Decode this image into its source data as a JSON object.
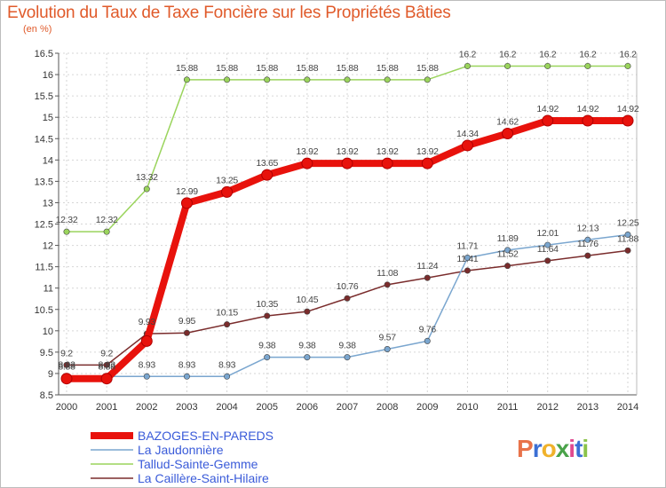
{
  "title": "Evolution du Taux de Taxe Foncière sur les Propriétés Bâties",
  "unit_label": "(en %)",
  "logo": {
    "text": "Proxiti",
    "colors": [
      "#e8734a",
      "#3b6fd4",
      "#f0b22b",
      "#4aa34a",
      "#e04a8f",
      "#3b6fd4",
      "#8bc34a"
    ]
  },
  "chart_data": {
    "type": "line",
    "x": [
      "2000",
      "2001",
      "2002",
      "2003",
      "2004",
      "2005",
      "2006",
      "2007",
      "2008",
      "2009",
      "2010",
      "2011",
      "2012",
      "2013",
      "2014"
    ],
    "ylim": [
      8.5,
      16.5
    ],
    "yticks": [
      "8.5",
      "9",
      "9.5",
      "10",
      "10.5",
      "11",
      "11.5",
      "12",
      "12.5",
      "13",
      "13.5",
      "14",
      "14.5",
      "15",
      "15.5",
      "16",
      "16.5"
    ],
    "grid": true,
    "legend_position": "bottom-left",
    "series": [
      {
        "name": "BAZOGES-EN-PAREDS",
        "color": "#e8120c",
        "values": [
          8.88,
          8.88,
          9.76,
          12.99,
          13.25,
          13.65,
          13.92,
          13.92,
          13.92,
          13.92,
          14.34,
          14.62,
          14.92,
          14.92,
          14.92
        ],
        "labels": [
          "8.88",
          "8.88",
          "",
          "12.99",
          "13.25",
          "13.65",
          "13.92",
          "13.92",
          "13.92",
          "13.92",
          "14.34",
          "14.62",
          "14.92",
          "14.92",
          "14.92"
        ]
      },
      {
        "name": "La Jaudonnière",
        "color": "#7aa6cf",
        "values": [
          8.93,
          8.93,
          8.93,
          8.93,
          8.93,
          9.38,
          9.38,
          9.38,
          9.57,
          9.76,
          11.71,
          11.89,
          12.01,
          12.13,
          12.25
        ],
        "labels": [
          "8.93",
          "8.93",
          "8.93",
          "8.93",
          "8.93",
          "9.38",
          "9.38",
          "9.38",
          "9.57",
          "9.76",
          "11.71",
          "11.89",
          "12.01",
          "12.13",
          "12.25"
        ]
      },
      {
        "name": "Tallud-Sainte-Gemme",
        "color": "#9ad45c",
        "values": [
          12.32,
          12.32,
          13.32,
          15.88,
          15.88,
          15.88,
          15.88,
          15.88,
          15.88,
          15.88,
          16.2,
          16.2,
          16.2,
          16.2,
          16.2
        ],
        "labels": [
          "12.32",
          "12.32",
          "13.32",
          "15.88",
          "15.88",
          "15.88",
          "15.88",
          "15.88",
          "15.88",
          "15.88",
          "16.2",
          "16.2",
          "16.2",
          "16.2",
          "16.2"
        ]
      },
      {
        "name": "La Caillère-Saint-Hilaire",
        "color": "#7a2c2c",
        "values": [
          9.2,
          9.2,
          9.93,
          9.95,
          10.15,
          10.35,
          10.45,
          10.76,
          11.08,
          11.24,
          11.41,
          11.52,
          11.64,
          11.76,
          11.88
        ],
        "labels": [
          "9.2",
          "9.2",
          "9.93",
          "9.95",
          "10.15",
          "10.35",
          "10.45",
          "10.76",
          "11.08",
          "11.24",
          "11.41",
          "11.52",
          "11.64",
          "11.76",
          "11.88"
        ]
      }
    ]
  }
}
